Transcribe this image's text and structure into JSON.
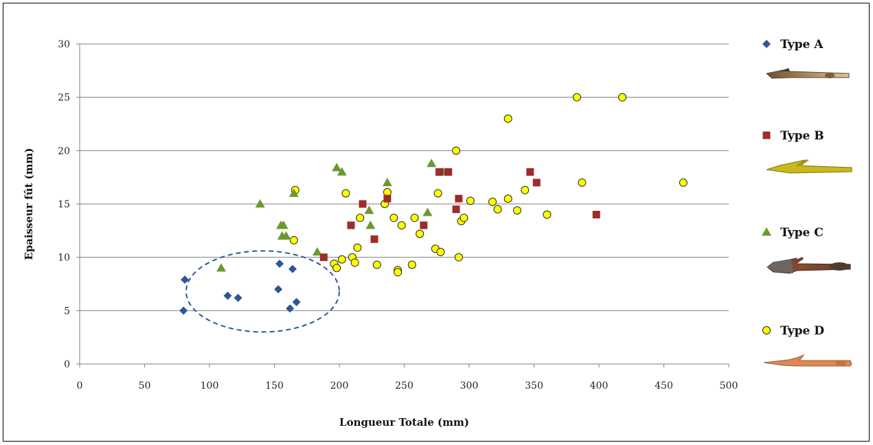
{
  "chart_data": {
    "type": "scatter",
    "xlabel": "Longueur Totale (mm)",
    "ylabel": "Epaisseur fût (mm)",
    "xlim": [
      0,
      500
    ],
    "ylim": [
      0,
      30
    ],
    "xticks": [
      0,
      50,
      100,
      150,
      200,
      250,
      300,
      350,
      400,
      450,
      500
    ],
    "yticks": [
      0,
      5,
      10,
      15,
      20,
      25,
      30
    ],
    "grid": "horizontal",
    "legend_position": "right",
    "series": [
      {
        "name": "Type A",
        "marker": "diamond",
        "color": "#2e5597",
        "points": [
          [
            80,
            5
          ],
          [
            81,
            7.9
          ],
          [
            114,
            6.4
          ],
          [
            122,
            6.2
          ],
          [
            153,
            7
          ],
          [
            154,
            9.4
          ],
          [
            162,
            5.2
          ],
          [
            164,
            8.9
          ],
          [
            167,
            5.8
          ]
        ]
      },
      {
        "name": "Type B",
        "marker": "square",
        "color": "#9b2d2a",
        "points": [
          [
            188,
            10
          ],
          [
            209,
            13
          ],
          [
            218,
            15
          ],
          [
            227,
            11.7
          ],
          [
            237,
            15.5
          ],
          [
            265,
            13
          ],
          [
            277,
            18
          ],
          [
            284,
            18
          ],
          [
            290,
            14.5
          ],
          [
            292,
            15.5
          ],
          [
            347,
            18
          ],
          [
            352,
            17
          ],
          [
            398,
            14
          ]
        ]
      },
      {
        "name": "Type C",
        "marker": "triangle",
        "color": "#6a9a2e",
        "points": [
          [
            109,
            9
          ],
          [
            139,
            15
          ],
          [
            155,
            13
          ],
          [
            156,
            12
          ],
          [
            157,
            13
          ],
          [
            159,
            12
          ],
          [
            165,
            16
          ],
          [
            183,
            10.5
          ],
          [
            198,
            18.4
          ],
          [
            202,
            18
          ],
          [
            223,
            14.4
          ],
          [
            224,
            13
          ],
          [
            237,
            17
          ],
          [
            268,
            14.2
          ],
          [
            271,
            18.8
          ],
          [
            280,
            18
          ]
        ]
      },
      {
        "name": "Type D",
        "marker": "circle",
        "color": "#ffff00",
        "points": [
          [
            165,
            11.6
          ],
          [
            166,
            16.3
          ],
          [
            196,
            9.4
          ],
          [
            198,
            9
          ],
          [
            202,
            9.8
          ],
          [
            205,
            16
          ],
          [
            210,
            10
          ],
          [
            212,
            9.5
          ],
          [
            214,
            10.9
          ],
          [
            216,
            13.7
          ],
          [
            229,
            9.3
          ],
          [
            235,
            15
          ],
          [
            237,
            16.1
          ],
          [
            242,
            13.7
          ],
          [
            245,
            8.8
          ],
          [
            245,
            8.6
          ],
          [
            248,
            13
          ],
          [
            256,
            9.3
          ],
          [
            258,
            13.7
          ],
          [
            262,
            12.2
          ],
          [
            274,
            10.8
          ],
          [
            276,
            16
          ],
          [
            278,
            10.5
          ],
          [
            290,
            20
          ],
          [
            292,
            10
          ],
          [
            294,
            13.4
          ],
          [
            296,
            13.7
          ],
          [
            301,
            15.3
          ],
          [
            318,
            15.2
          ],
          [
            322,
            14.5
          ],
          [
            330,
            15.5
          ],
          [
            330,
            23
          ],
          [
            337,
            14.4
          ],
          [
            343,
            16.3
          ],
          [
            360,
            14
          ],
          [
            383,
            25
          ],
          [
            387,
            17
          ],
          [
            418,
            25
          ],
          [
            465,
            17
          ]
        ]
      }
    ],
    "annotations": [
      {
        "type": "dashed-ellipse",
        "note": "encircles Type A group",
        "center": [
          141,
          6.8
        ],
        "rx_data": 59,
        "ry_data": 3.8
      }
    ]
  },
  "legend": {
    "items": [
      {
        "label": "Type A",
        "image": "antler-arrowhead-type-a"
      },
      {
        "label": "Type B",
        "image": "antler-arrowhead-type-b"
      },
      {
        "label": "Type C",
        "image": "antler-arrowhead-type-c"
      },
      {
        "label": "Type D",
        "image": "antler-arrowhead-type-d"
      }
    ]
  }
}
